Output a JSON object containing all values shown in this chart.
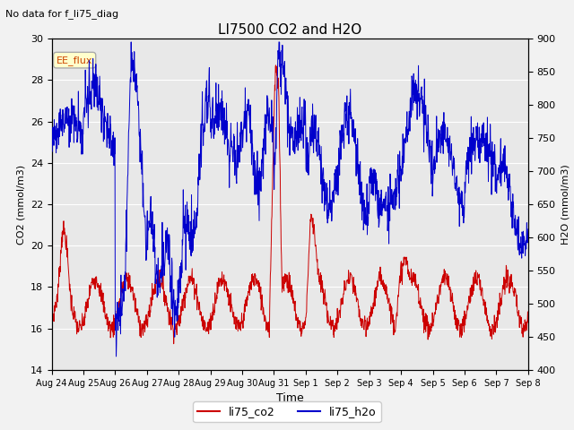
{
  "title": "LI7500 CO2 and H2O",
  "suptitle": "No data for f_li75_diag",
  "xlabel": "Time",
  "ylabel_left": "CO2 (mmol/m3)",
  "ylabel_right": "H2O (mmol/m3)",
  "ylim_left": [
    14,
    30
  ],
  "ylim_right": [
    400,
    900
  ],
  "yticks_left": [
    14,
    16,
    18,
    20,
    22,
    24,
    26,
    28,
    30
  ],
  "yticks_right": [
    400,
    450,
    500,
    550,
    600,
    650,
    700,
    750,
    800,
    850,
    900
  ],
  "xticklabels": [
    "Aug 24",
    "Aug 25",
    "Aug 26",
    "Aug 27",
    "Aug 28",
    "Aug 29",
    "Aug 30",
    "Aug 31",
    "Sep 1",
    "Sep 2",
    "Sep 3",
    "Sep 4",
    "Sep 5",
    "Sep 6",
    "Sep 7",
    "Sep 8"
  ],
  "co2_color": "#cc0000",
  "h2o_color": "#0000cc",
  "legend_label_co2": "li75_co2",
  "legend_label_h2o": "li75_h2o",
  "annotation_box_label": "EE_flux",
  "plot_bg_color": "#e8e8e8",
  "fig_bg_color": "#f2f2f2",
  "grid_color": "#ffffff"
}
